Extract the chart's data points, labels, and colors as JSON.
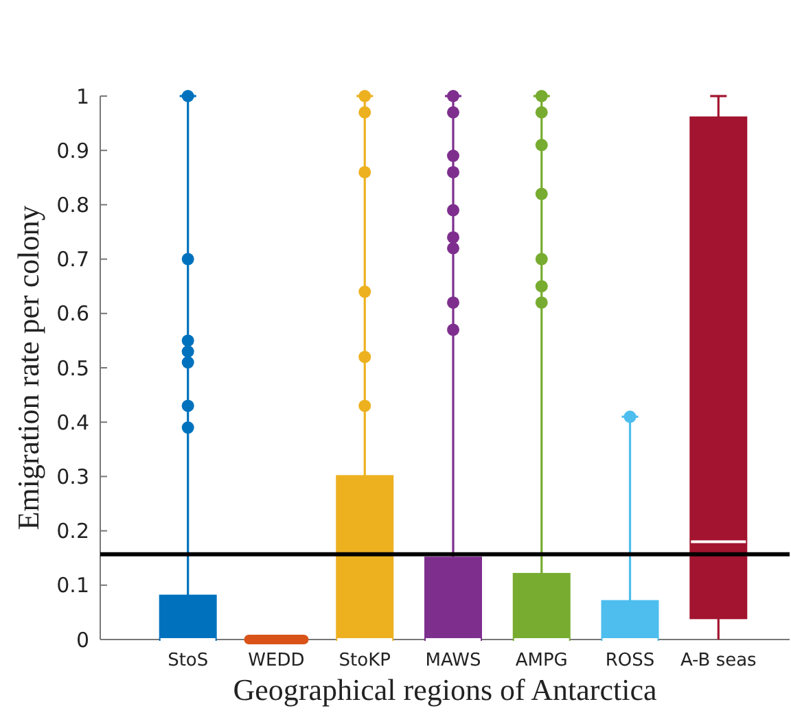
{
  "chart_data": {
    "type": "box",
    "xlabel": "Geographical regions of Antarctica",
    "ylabel": "Emigration rate per colony",
    "categories": [
      "StoS",
      "WEDD",
      "StoKP",
      "MAWS",
      "AMPG",
      "ROSS",
      "A-B seas"
    ],
    "colors": [
      "#0072bd",
      "#d95319",
      "#edb120",
      "#7e2f8e",
      "#77ac30",
      "#4dbeee",
      "#a2142f"
    ],
    "boxes": [
      {
        "low": 0,
        "q1": 0,
        "median": 0,
        "q3": 0.08,
        "high": 1,
        "outliers": [
          1,
          0.7,
          0.55,
          0.53,
          0.51,
          0.43,
          0.39
        ]
      },
      {
        "low": 0,
        "q1": 0,
        "median": 0,
        "q3": 0,
        "high": 0
      },
      {
        "low": 0,
        "q1": 0,
        "median": 0,
        "q3": 0.3,
        "high": 1,
        "outliers": [
          1,
          0.97,
          0.86,
          0.64,
          0.52,
          0.43
        ]
      },
      {
        "low": 0,
        "q1": 0,
        "median": 0,
        "q3": 0.15,
        "high": 1,
        "outliers": [
          1,
          0.97,
          0.89,
          0.86,
          0.79,
          0.74,
          0.72,
          0.62,
          0.57
        ]
      },
      {
        "low": 0,
        "q1": 0,
        "median": 0,
        "q3": 0.12,
        "high": 1,
        "outliers": [
          1,
          0.97,
          0.91,
          0.82,
          0.7,
          0.65,
          0.62
        ]
      },
      {
        "low": 0,
        "q1": 0,
        "median": 0,
        "q3": 0.07,
        "high": 0.41,
        "outliers": [
          0.41
        ]
      },
      {
        "low": 0,
        "q1": 0.04,
        "median": 0.18,
        "q3": 0.96,
        "high": 1
      }
    ],
    "ylim": [
      0,
      1
    ],
    "yticks": [
      0,
      0.1,
      0.2,
      0.3,
      0.4,
      0.5,
      0.6,
      0.7,
      0.8,
      0.9,
      1
    ],
    "ref_lines": [
      {
        "axis": "y",
        "value": 0.157,
        "color": "#000000"
      }
    ],
    "grid": false
  }
}
